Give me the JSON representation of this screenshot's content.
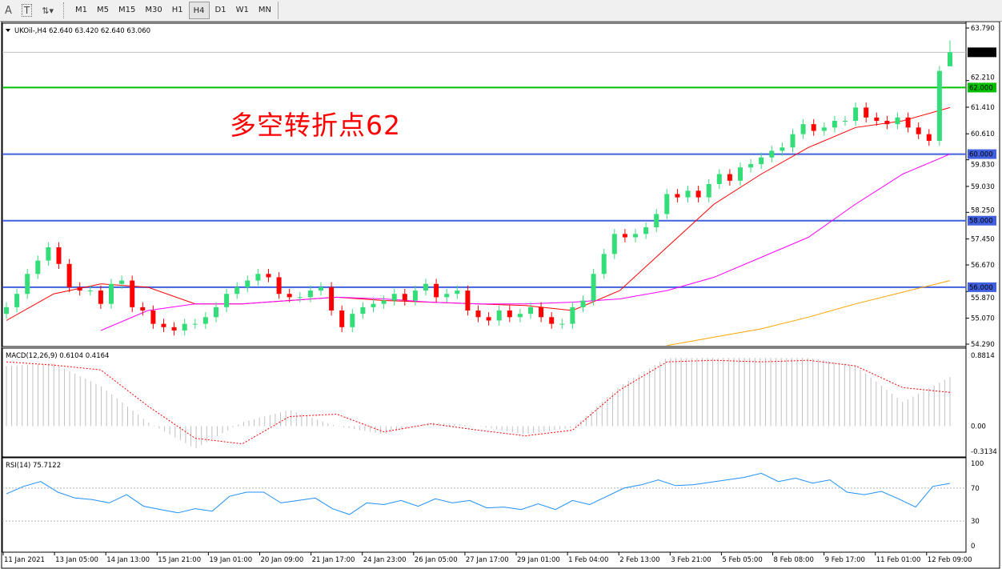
{
  "toolbar": {
    "tools": [
      {
        "name": "text-tool",
        "glyph": "A"
      },
      {
        "name": "text-label-tool",
        "glyph": "T"
      },
      {
        "name": "arrows-tool",
        "glyph": "⇅▾"
      }
    ],
    "timeframes": [
      "M1",
      "M5",
      "M15",
      "M30",
      "H1",
      "H4",
      "D1",
      "W1",
      "MN"
    ],
    "active_timeframe": "H4"
  },
  "chart_data": [
    {
      "type": "candlestick",
      "title": "UKOil-,H4  62.640 63.420 62.640 63.060",
      "symbol": "UKOil-,H4",
      "last_ohlc": {
        "open": 62.64,
        "high": 63.42,
        "low": 62.64,
        "close": 63.06
      },
      "ylim": [
        54.29,
        63.79
      ],
      "y_ticks": [
        "63.790",
        "62.210",
        "61.410",
        "60.610",
        "59.830",
        "59.030",
        "58.250",
        "57.450",
        "56.670",
        "55.870",
        "55.070",
        "54.290"
      ],
      "current_price_label": "63.060",
      "close": [
        55.4,
        55.8,
        56.4,
        56.8,
        57.2,
        56.7,
        56.0,
        55.9,
        55.9,
        55.5,
        56.1,
        56.2,
        55.4,
        55.3,
        54.9,
        54.8,
        54.7,
        54.9,
        54.9,
        55.1,
        55.4,
        55.8,
        56.0,
        56.2,
        56.4,
        56.3,
        55.8,
        55.7,
        55.7,
        55.9,
        56.0,
        55.3,
        54.8,
        55.2,
        55.4,
        55.5,
        55.6,
        55.8,
        55.6,
        55.9,
        56.1,
        55.7,
        55.8,
        55.9,
        55.3,
        55.1,
        55.0,
        55.3,
        55.1,
        55.2,
        55.4,
        55.1,
        54.9,
        54.9,
        55.4,
        55.6,
        56.4,
        57.0,
        57.6,
        57.5,
        57.6,
        57.8,
        58.2,
        58.8,
        58.7,
        58.9,
        58.7,
        59.1,
        59.4,
        59.2,
        59.6,
        59.7,
        59.9,
        60.1,
        60.2,
        60.6,
        60.9,
        60.7,
        60.8,
        61.0,
        61.0,
        61.4,
        61.1,
        61.0,
        60.9,
        61.1,
        60.8,
        60.6,
        60.4,
        62.5,
        63.06
      ],
      "moving_averages": [
        {
          "color": "#ff0000",
          "values": [
            55.0,
            55.8,
            56.1,
            56.0,
            55.5,
            55.5,
            55.6,
            55.7,
            55.6,
            55.55,
            55.5,
            55.45,
            55.3,
            55.9,
            57.2,
            58.5,
            59.4,
            60.2,
            60.8,
            61.0,
            61.4
          ]
        },
        {
          "color": "#ff00ff",
          "values": [
            null,
            null,
            54.7,
            55.3,
            55.5,
            55.5,
            55.6,
            55.7,
            55.65,
            55.55,
            55.5,
            55.5,
            55.55,
            55.65,
            55.9,
            56.3,
            56.9,
            57.5,
            58.5,
            59.4,
            60.0
          ]
        },
        {
          "color": "#ffa500",
          "values": [
            null,
            null,
            null,
            null,
            null,
            null,
            null,
            null,
            null,
            null,
            null,
            null,
            null,
            null,
            54.25,
            54.5,
            54.75,
            55.1,
            55.5,
            55.85,
            56.2
          ]
        }
      ],
      "horizontal_lines": [
        {
          "price": 62.0,
          "label": "62.000",
          "color": "#00c000"
        },
        {
          "price": 60.0,
          "label": "60.000",
          "color": "#4060e0"
        },
        {
          "price": 58.0,
          "label": "58.000",
          "color": "#4060e0"
        },
        {
          "price": 56.0,
          "label": "56.000",
          "color": "#4060e0"
        }
      ],
      "annotation": "多空转折点62",
      "colors": {
        "bull": "#33dd77",
        "bear": "#ff0000"
      }
    },
    {
      "type": "bar+line",
      "title": "MACD(12,26,9) 0.6104 0.4164",
      "ylim": [
        -0.3134,
        0.8814
      ],
      "y_ticks": [
        "0.8814",
        "0.00",
        "-0.3134"
      ],
      "histogram": [
        0.75,
        0.78,
        0.5,
        0.05,
        -0.28,
        0.05,
        0.2,
        0.0,
        -0.1,
        0.05,
        0.0,
        -0.1,
        -0.02,
        0.5,
        0.85,
        0.85,
        0.85,
        0.85,
        0.75,
        0.3,
        0.61
      ],
      "signal": [
        0.8,
        0.76,
        0.7,
        0.25,
        -0.15,
        -0.22,
        0.12,
        0.15,
        -0.07,
        0.03,
        -0.05,
        -0.12,
        -0.05,
        0.45,
        0.8,
        0.82,
        0.8,
        0.82,
        0.75,
        0.48,
        0.42
      ],
      "colors": {
        "histogram": "#c0c0c0",
        "signal": "#ff0000"
      }
    },
    {
      "type": "line",
      "title": "RSI(14) 75.7122",
      "ylim": [
        0,
        100
      ],
      "y_ticks": [
        "100",
        "70",
        "30",
        "0"
      ],
      "levels": [
        70,
        30
      ],
      "values": [
        63,
        72,
        78,
        65,
        58,
        56,
        52,
        62,
        48,
        44,
        40,
        45,
        42,
        60,
        65,
        65,
        52,
        55,
        58,
        45,
        38,
        52,
        50,
        55,
        48,
        57,
        52,
        55,
        46,
        47,
        44,
        51,
        44,
        55,
        50,
        60,
        70,
        74,
        80,
        73,
        74,
        77,
        80,
        83,
        88,
        78,
        82,
        76,
        80,
        65,
        62,
        66,
        57,
        47,
        72,
        75.7
      ],
      "color": "#1e90ff"
    }
  ],
  "x_ticks": [
    "11 Jan 2021",
    "13 Jan 05:00",
    "14 Jan 13:00",
    "15 Jan 21:00",
    "19 Jan 01:00",
    "20 Jan 09:00",
    "21 Jan 17:00",
    "24 Jan 23:00",
    "26 Jan 05:00",
    "27 Jan 17:00",
    "29 Jan 01:00",
    "1 Feb 04:00",
    "2 Feb 13:00",
    "3 Feb 21:00",
    "5 Feb 05:00",
    "8 Feb 08:00",
    "9 Feb 17:00",
    "11 Feb 01:00",
    "12 Feb 09:00"
  ]
}
